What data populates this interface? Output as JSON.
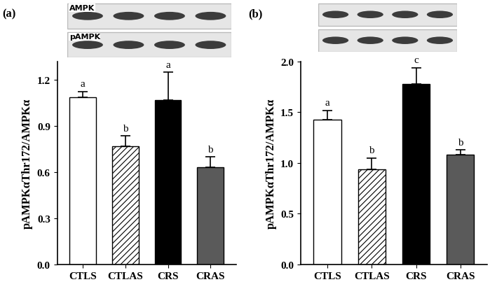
{
  "chart_data": [
    {
      "type": "bar",
      "panel_label": "(a)",
      "blot_labels": [
        "AMPK",
        "pAMPK"
      ],
      "categories": [
        "CTLS",
        "CTLAS",
        "CRS",
        "CRAS"
      ],
      "values": [
        1.09,
        0.77,
        1.07,
        0.63
      ],
      "error": [
        0.035,
        0.065,
        0.18,
        0.07
      ],
      "letters": [
        "a",
        "b",
        "a",
        "b"
      ],
      "colors": [
        "#ffffff",
        "#ffffff",
        "#000000",
        "#5a5a5a"
      ],
      "y_label": "pAMPKαThr172/AMPKα",
      "ylim": [
        0,
        1.32
      ],
      "yticks": [
        {
          "value": 0,
          "label": "0.0"
        },
        {
          "value": 0.3,
          "label": "0.3"
        },
        {
          "value": 0.6,
          "label": "0.6"
        },
        {
          "value": 0.9,
          "label": "0.9"
        },
        {
          "value": 1.2,
          "label": "1.2"
        }
      ]
    },
    {
      "type": "bar",
      "panel_label": "(b)",
      "categories": [
        "CTLS",
        "CTLAS",
        "CRS",
        "CRAS"
      ],
      "values": [
        1.43,
        0.94,
        1.78,
        1.08
      ],
      "error": [
        0.09,
        0.11,
        0.16,
        0.05
      ],
      "letters": [
        "a",
        "b",
        "c",
        "b"
      ],
      "colors": [
        "#ffffff",
        "#ffffff",
        "#000000",
        "#5a5a5a"
      ],
      "y_label": "pAMPKαThr172/AMPKα",
      "ylim": [
        0,
        2.0
      ],
      "yticks": [
        {
          "value": 0,
          "label": "0.0"
        },
        {
          "value": 0.5,
          "label": "0.5"
        },
        {
          "value": 1.0,
          "label": "1.0"
        },
        {
          "value": 1.5,
          "label": "1.5"
        },
        {
          "value": 2.0,
          "label": "2.0"
        }
      ]
    }
  ]
}
